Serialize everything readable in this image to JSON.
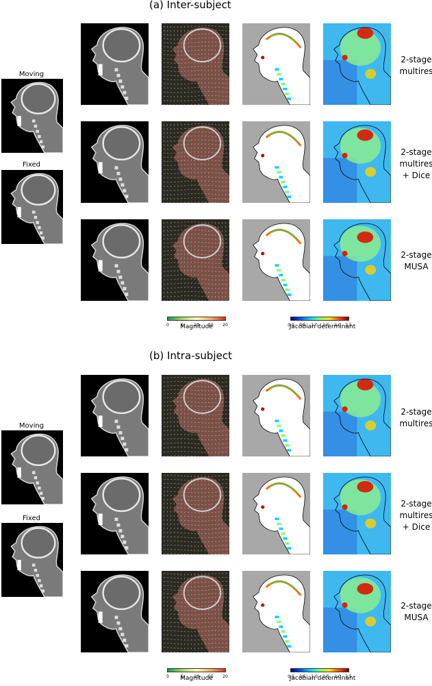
{
  "sections": [
    {
      "title": "(a) Inter-subject",
      "inputs": {
        "moving_label": "Moving",
        "fixed_label": "Fixed"
      },
      "rows": [
        {
          "label_lines": [
            "2-stage",
            "multires"
          ]
        },
        {
          "label_lines": [
            "2-stage",
            "multires",
            "+ Dice"
          ]
        },
        {
          "label_lines": [
            "2-stage",
            "MUSA"
          ]
        }
      ],
      "colorbars": {
        "magnitude": {
          "label": "Magnitude",
          "ticks": [
            "0",
            "5",
            "10",
            "15",
            "20"
          ],
          "colors": [
            "#1a9850",
            "#a6d96a",
            "#ffffbf",
            "#fdae61",
            "#d73027"
          ]
        },
        "jacobian": {
          "label": "Jacobian determinant",
          "ticks": [
            "0.0",
            "0.5",
            "1.0",
            "1.5",
            "2.0",
            "2.5"
          ],
          "colors": [
            "#00007f",
            "#0050ff",
            "#00d4ff",
            "#7dff7a",
            "#ffe600",
            "#ff4a00",
            "#7f0000"
          ]
        }
      }
    },
    {
      "title": "(b) Intra-subject",
      "inputs": {
        "moving_label": "Moving",
        "fixed_label": "Fixed"
      },
      "rows": [
        {
          "label_lines": [
            "2-stage",
            "multires"
          ]
        },
        {
          "label_lines": [
            "2-stage",
            "multires",
            "+ Dice"
          ]
        },
        {
          "label_lines": [
            "2-stage",
            "MUSA"
          ]
        }
      ],
      "colorbars": {
        "magnitude": {
          "label": "Magnitude",
          "ticks": [
            "0",
            "5",
            "10",
            "15",
            "20"
          ],
          "colors": [
            "#1a9850",
            "#a6d96a",
            "#ffffbf",
            "#fdae61",
            "#d73027"
          ]
        },
        "jacobian": {
          "label": "Jacobian determinant",
          "ticks": [
            "0.0",
            "0.5",
            "1.0",
            "1.5",
            "2.0",
            "2.5"
          ],
          "colors": [
            "#00007f",
            "#0050ff",
            "#00d4ff",
            "#7dff7a",
            "#ffe600",
            "#ff4a00",
            "#7f0000"
          ]
        }
      }
    }
  ]
}
